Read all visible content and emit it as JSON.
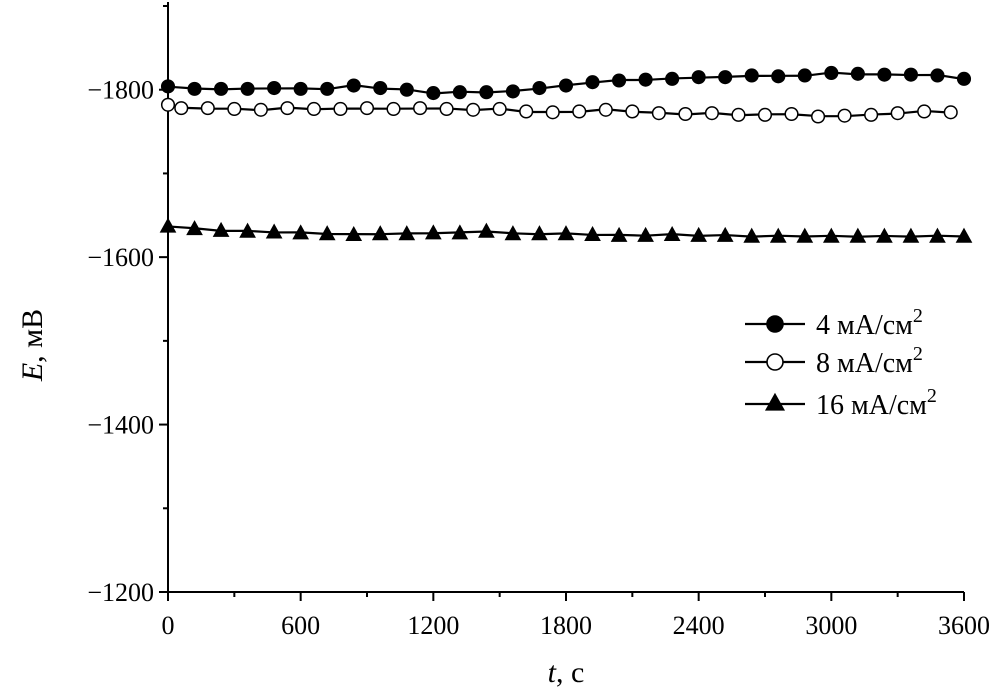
{
  "chart_data": {
    "type": "line",
    "title": "",
    "xlabel": {
      "var": "t",
      "unit": ", с"
    },
    "ylabel": {
      "var": "E",
      "unit": ", мВ"
    },
    "xlim": [
      0,
      3600
    ],
    "ylim": [
      -1900,
      -1200
    ],
    "y_reversed": true,
    "x_ticks": [
      0,
      600,
      1200,
      1800,
      2400,
      3000,
      3600
    ],
    "x_tick_labels": [
      "0",
      "600",
      "1200",
      "1800",
      "2400",
      "3000",
      "3600"
    ],
    "y_ticks": [
      -1800,
      -1600,
      -1400,
      -1200
    ],
    "y_tick_labels": [
      "−1800",
      "−1600",
      "−1400",
      "−1200"
    ],
    "grid": false,
    "legend_position": "right-center",
    "series": [
      {
        "name": "4 мА/см",
        "name_sup": "2",
        "marker": "filled-circle",
        "x": [
          0,
          120,
          240,
          360,
          480,
          600,
          720,
          840,
          960,
          1080,
          1200,
          1320,
          1440,
          1560,
          1680,
          1800,
          1920,
          2040,
          2160,
          2280,
          2400,
          2520,
          2640,
          2760,
          2880,
          3000,
          3120,
          3240,
          3360,
          3480,
          3600
        ],
        "y": [
          -1804,
          -1801,
          -1801,
          -1801,
          -1802,
          -1801,
          -1801,
          -1805,
          -1802,
          -1800,
          -1796,
          -1797,
          -1797,
          -1798,
          -1802,
          -1805,
          -1809,
          -1811,
          -1812,
          -1813,
          -1815,
          -1815,
          -1817,
          -1816,
          -1817,
          -1820,
          -1819,
          -1818,
          -1818,
          -1817,
          -1813
        ]
      },
      {
        "name": "8 мА/см",
        "name_sup": "2",
        "marker": "open-circle",
        "x": [
          0,
          60,
          180,
          300,
          420,
          540,
          660,
          780,
          900,
          1020,
          1140,
          1260,
          1380,
          1500,
          1620,
          1740,
          1860,
          1980,
          2100,
          2220,
          2340,
          2460,
          2580,
          2700,
          2820,
          2940,
          3060,
          3180,
          3300,
          3420,
          3540
        ],
        "y": [
          -1782,
          -1778,
          -1778,
          -1777,
          -1776,
          -1778,
          -1777,
          -1777,
          -1778,
          -1777,
          -1778,
          -1777,
          -1776,
          -1777,
          -1774,
          -1773,
          -1774,
          -1776,
          -1774,
          -1772,
          -1771,
          -1772,
          -1770,
          -1770,
          -1771,
          -1768,
          -1769,
          -1770,
          -1772,
          -1774,
          -1773
        ]
      },
      {
        "name": "16 мА/см",
        "name_sup": "2",
        "marker": "filled-triangle",
        "x": [
          0,
          120,
          240,
          360,
          480,
          600,
          720,
          840,
          960,
          1080,
          1200,
          1320,
          1440,
          1560,
          1680,
          1800,
          1920,
          2040,
          2160,
          2280,
          2400,
          2520,
          2640,
          2760,
          2880,
          3000,
          3120,
          3240,
          3360,
          3480,
          3600
        ],
        "y": [
          -1637,
          -1634,
          -1632,
          -1631,
          -1630,
          -1629,
          -1628,
          -1627,
          -1628,
          -1628,
          -1629,
          -1629,
          -1631,
          -1628,
          -1628,
          -1628,
          -1627,
          -1626,
          -1626,
          -1627,
          -1626,
          -1626,
          -1625,
          -1625,
          -1625,
          -1625,
          -1625,
          -1625,
          -1625,
          -1625,
          -1625
        ]
      }
    ]
  }
}
